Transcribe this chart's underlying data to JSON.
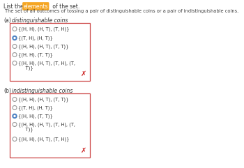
{
  "title_prefix": "List the ",
  "title_highlight": "elements",
  "title_suffix": " of the set.",
  "subtitle": "The set of all outcomes of tossing a pair of distinguishable coins or a pair of indistinguishable coins.",
  "section_a_label": "(a)",
  "section_a_text": "distinguishable coins",
  "section_b_label": "(b)",
  "section_b_text": "indistinguishable coins",
  "options_a": [
    "{(H, H), (H, T), (T, H)}",
    "{(T, H), (H, T)}",
    "{(H, H), (H, T), (T, T)}",
    "{(H, H), (T, T)}",
    "{(H, H), (H, T), (T, H), (T,\n     T)}"
  ],
  "selected_a": 1,
  "options_b": [
    "{(H, H), (H, T), (T, T)}",
    "{(T, H), (H, T)}",
    "{(H, H), (T, T)}",
    "{(H, H), (H, T), (T, H), (T,\n     T)}",
    "{(H, H), (H, T), (T, H)}"
  ],
  "selected_b": 2,
  "highlight_color": "#F5A623",
  "box_color": "#CC4444",
  "radio_filled_color": "#4A7FC1",
  "radio_empty_color": "#999999",
  "x_color": "#CC2222",
  "text_color": "#333333",
  "subtitle_color": "#444444",
  "bg_color": "#FFFFFF"
}
